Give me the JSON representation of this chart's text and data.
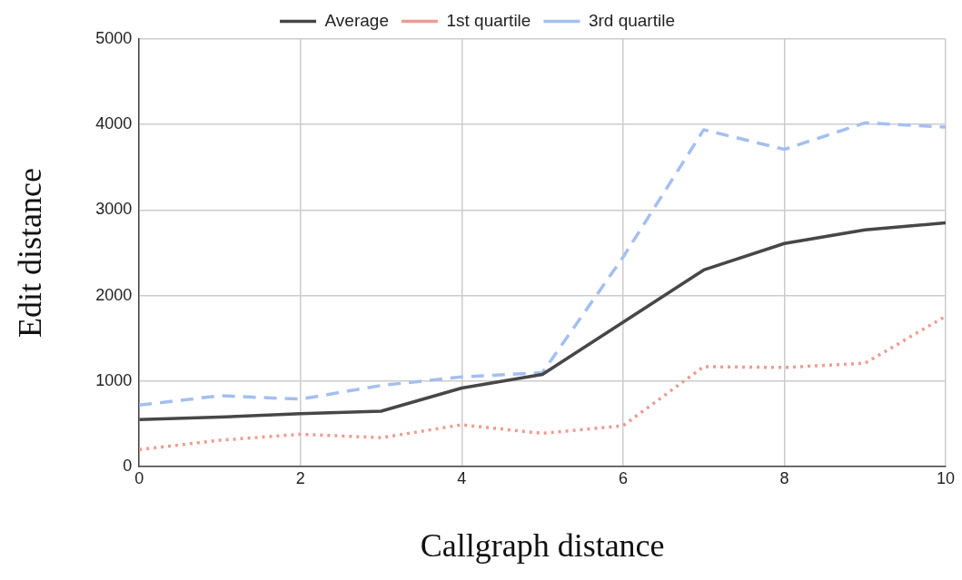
{
  "chart_data": {
    "type": "line",
    "xlabel": "Callgraph distance",
    "ylabel": "Edit distance",
    "x": [
      0,
      1,
      2,
      3,
      4,
      5,
      6,
      7,
      8,
      9,
      10
    ],
    "series": [
      {
        "name": "Average",
        "color": "#474747",
        "line_style": "solid",
        "values": [
          550,
          580,
          620,
          650,
          920,
          1080,
          1690,
          2300,
          2610,
          2770,
          2850
        ]
      },
      {
        "name": "1st quartile",
        "color": "#ee9c93",
        "line_style": "dotted",
        "values": [
          200,
          310,
          380,
          340,
          490,
          390,
          480,
          1170,
          1160,
          1210,
          1760
        ]
      },
      {
        "name": "3rd quartile",
        "color": "#a4bff0",
        "line_style": "dashed",
        "values": [
          720,
          830,
          790,
          950,
          1050,
          1100,
          2450,
          3940,
          3710,
          4020,
          3970
        ]
      }
    ],
    "xlim": [
      0,
      10
    ],
    "xticks": [
      0,
      2,
      4,
      6,
      8,
      10
    ],
    "ylim": [
      0,
      5000
    ],
    "yticks": [
      0,
      1000,
      2000,
      3000,
      4000,
      5000
    ],
    "grid": true,
    "legend": "top",
    "marker": "none"
  }
}
